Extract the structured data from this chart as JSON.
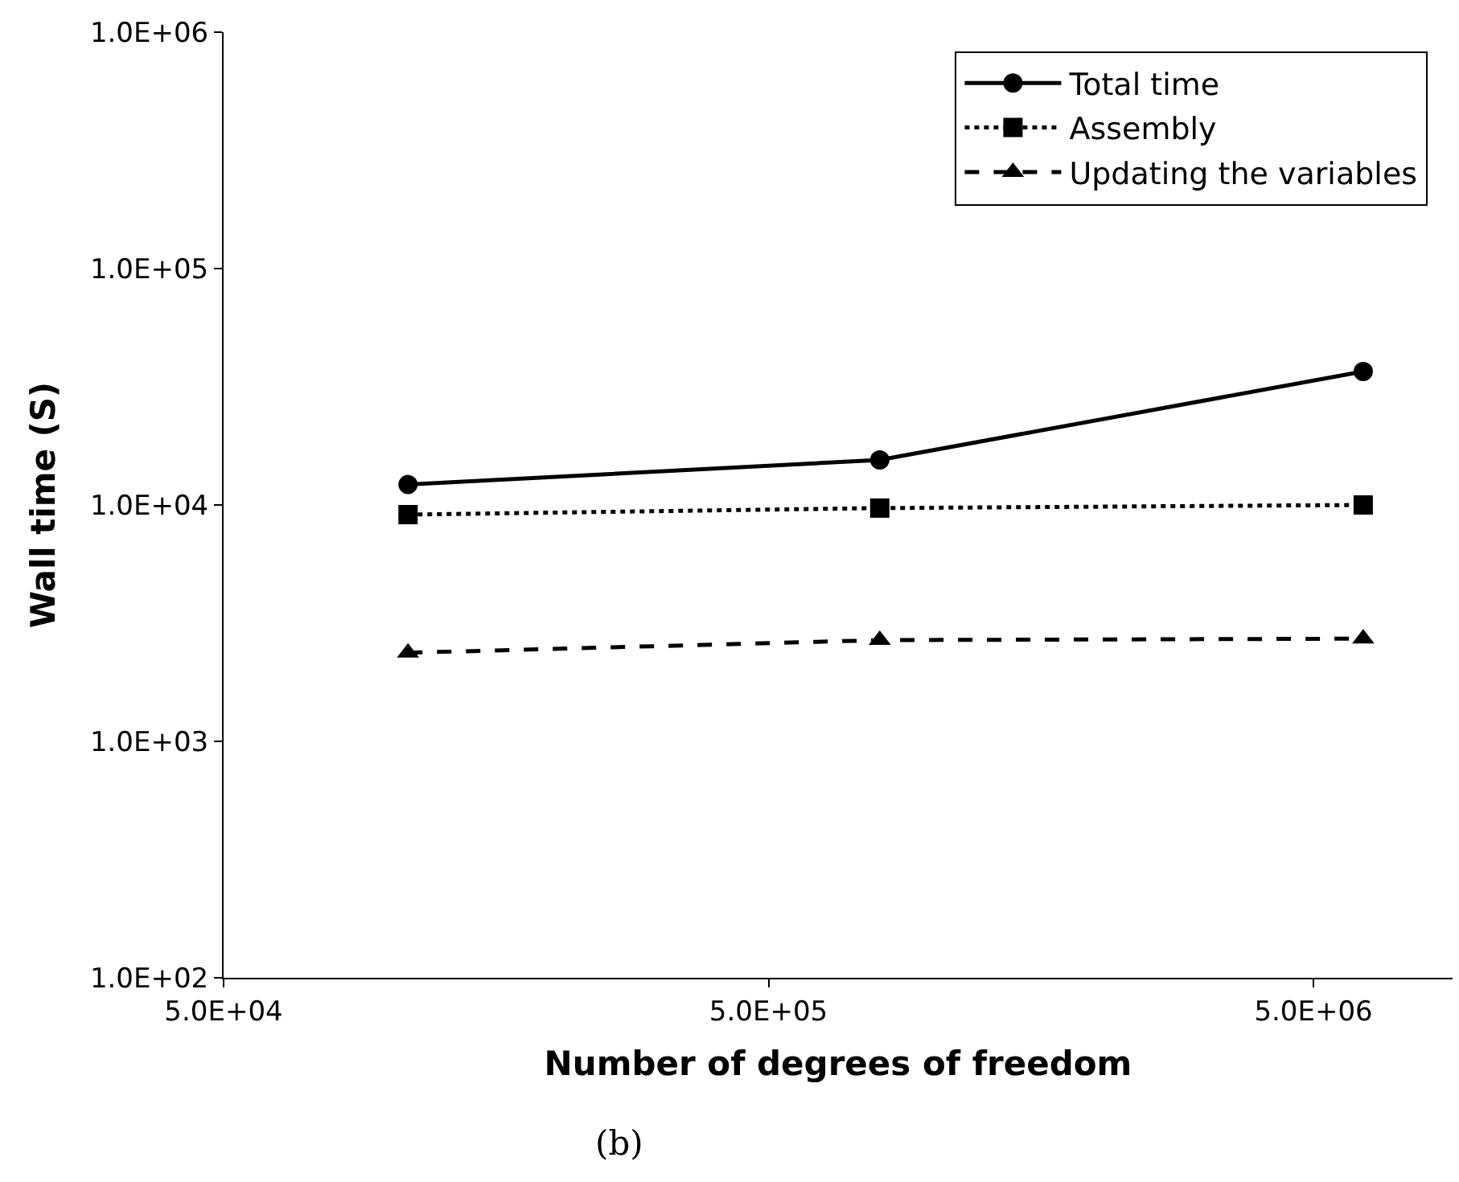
{
  "chart_data": {
    "type": "line",
    "xlabel": "Number of degrees of freedom",
    "ylabel": "Wall time (S)",
    "annotations": [
      "(b)"
    ],
    "x": [
      109000,
      800000,
      6170000
    ],
    "series": [
      {
        "name": "Total time",
        "color": "#000000",
        "values": [
          12200,
          15500,
          36700
        ],
        "marker": "circle",
        "line_style": "solid"
      },
      {
        "name": "Assembly",
        "color": "#000000",
        "values": [
          9100,
          9700,
          10000
        ],
        "marker": "square",
        "line_style": "dotted"
      },
      {
        "name": "Updating the variables",
        "color": "#000000",
        "values": [
          2370,
          2680,
          2720
        ],
        "marker": "triangle",
        "line_style": "dashed"
      }
    ],
    "log": "xy",
    "xlim": [
      50000,
      9000000
    ],
    "ylim": [
      100,
      1000000
    ],
    "xticks": [
      {
        "value": 50000,
        "label": "5.0E+04"
      },
      {
        "value": 500000,
        "label": "5.0E+05"
      },
      {
        "value": 5000000,
        "label": "5.0E+06"
      }
    ],
    "yticks": [
      {
        "value": 100,
        "label": "1.0E+02"
      },
      {
        "value": 1000,
        "label": "1.0E+03"
      },
      {
        "value": 10000,
        "label": "1.0E+04"
      },
      {
        "value": 100000,
        "label": "1.0E+05"
      },
      {
        "value": 1000000,
        "label": "1.0E+06"
      }
    ],
    "legend": "top right"
  }
}
